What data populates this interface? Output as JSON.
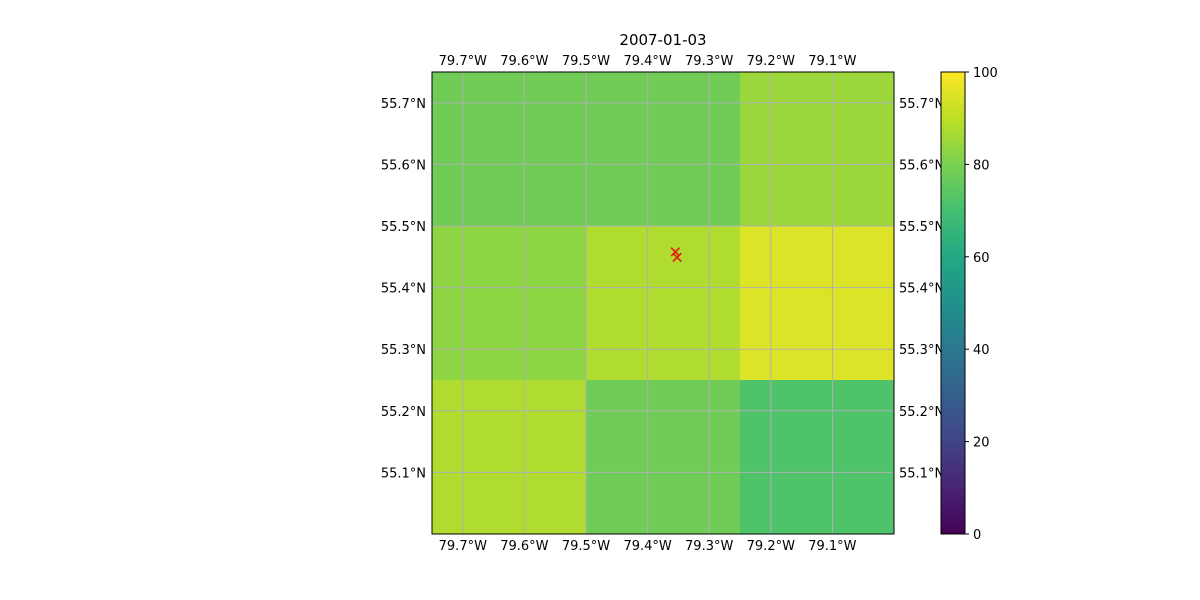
{
  "chart_data": {
    "type": "heatmap",
    "title": "2007-01-03",
    "xlabel": "",
    "ylabel": "",
    "xlim": [
      -79.75,
      -79.0
    ],
    "ylim": [
      55.0,
      55.75
    ],
    "grid": true,
    "x_ticks": [
      -79.7,
      -79.6,
      -79.5,
      -79.4,
      -79.3,
      -79.2,
      -79.1
    ],
    "x_tick_labels": [
      "79.7°W",
      "79.6°W",
      "79.5°W",
      "79.4°W",
      "79.3°W",
      "79.2°W",
      "79.1°W"
    ],
    "y_ticks": [
      55.1,
      55.2,
      55.3,
      55.4,
      55.5,
      55.6,
      55.7
    ],
    "y_tick_labels": [
      "55.1°N",
      "55.2°N",
      "55.3°N",
      "55.4°N",
      "55.5°N",
      "55.6°N",
      "55.7°N"
    ],
    "grid_cells": {
      "x_edges": [
        -79.75,
        -79.5,
        -79.25,
        -79.0
      ],
      "y_edges": [
        55.0,
        55.25,
        55.5,
        55.75
      ],
      "values": [
        [
          88,
          78,
          72
        ],
        [
          83,
          88,
          95
        ],
        [
          78,
          78,
          85
        ]
      ]
    },
    "markers": {
      "symbol": "x",
      "color": "#e8190e",
      "points": [
        {
          "lon": -79.355,
          "lat": 55.458
        },
        {
          "lon": -79.352,
          "lat": 55.449
        }
      ]
    },
    "colorbar": {
      "colormap": "viridis",
      "vmin": 0,
      "vmax": 100,
      "ticks": [
        0,
        20,
        40,
        60,
        80,
        100
      ],
      "tick_labels": [
        "0",
        "20",
        "40",
        "60",
        "80",
        "100"
      ]
    }
  }
}
